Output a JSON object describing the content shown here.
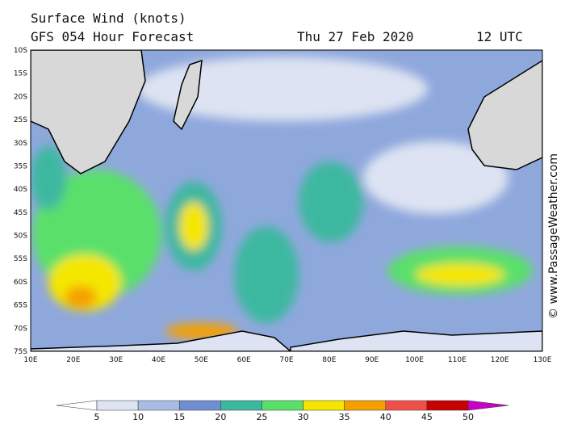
{
  "header": {
    "title": "Surface Wind (knots)",
    "subtitle": "GFS 054 Hour Forecast",
    "date": "Thu 27 Feb 2020",
    "time": "12 UTC"
  },
  "map": {
    "lat_labels": [
      "10S",
      "15S",
      "20S",
      "25S",
      "30S",
      "35S",
      "40S",
      "45S",
      "50S",
      "55S",
      "60S",
      "65S",
      "70S",
      "75S"
    ],
    "lon_labels": [
      "10E",
      "20E",
      "30E",
      "40E",
      "50E",
      "60E",
      "70E",
      "80E",
      "90E",
      "100E",
      "110E",
      "120E",
      "130E"
    ]
  },
  "colorbar": {
    "labels": [
      "5",
      "10",
      "15",
      "20",
      "25",
      "30",
      "35",
      "40",
      "45",
      "50"
    ],
    "colors": [
      "#ffffff",
      "#dde3f2",
      "#a9bde3",
      "#6f8fd0",
      "#3cb8a0",
      "#5ae06a",
      "#f5e600",
      "#f5a000",
      "#f0504a",
      "#c80000",
      "#c800c8"
    ]
  },
  "credit": "© www.PassageWeather.com"
}
